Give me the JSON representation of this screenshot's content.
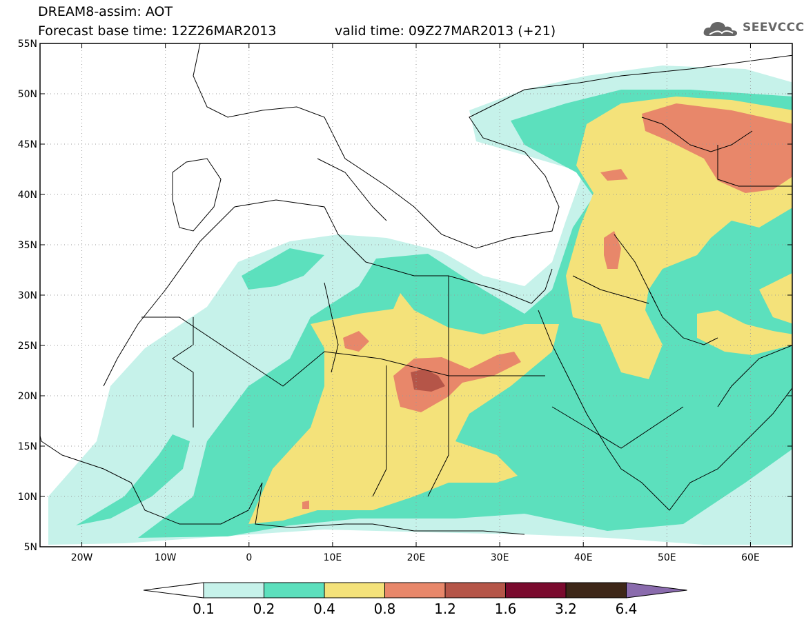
{
  "header": {
    "title_line1": "DREAM8-assim: AOT",
    "title_line2": "Forecast base time: 12Z26MAR2013",
    "valid_time": "valid time: 09Z27MAR2013 (+21)",
    "logo_text": "SEEVCCC",
    "logo_icon": "cloud-icon"
  },
  "map": {
    "x_ticks": [
      "20W",
      "10W",
      "0",
      "10E",
      "20E",
      "30E",
      "40E",
      "50E",
      "60E"
    ],
    "y_ticks": [
      "55N",
      "50N",
      "45N",
      "40N",
      "35N",
      "30N",
      "25N",
      "20N",
      "15N",
      "10N",
      "5N"
    ],
    "lon_range": [
      -25,
      65
    ],
    "lat_range": [
      5,
      55
    ],
    "grid": true
  },
  "colorbar": {
    "labels": [
      "0.1",
      "0.2",
      "0.4",
      "0.8",
      "1.2",
      "1.6",
      "3.2",
      "6.4"
    ],
    "colors": [
      "#c6f2ea",
      "#5ce0bd",
      "#f4e27a",
      "#e8876a",
      "#b55548",
      "#7a0a2e",
      "#3e2718",
      "#8a6bad"
    ]
  },
  "chart_data": {
    "type": "heatmap",
    "variable": "AOT",
    "levels": [
      0.1,
      0.2,
      0.4,
      0.8,
      1.2,
      1.6,
      3.2,
      6.4
    ],
    "xlim": [
      -25,
      65
    ],
    "ylim": [
      5,
      55
    ]
  }
}
